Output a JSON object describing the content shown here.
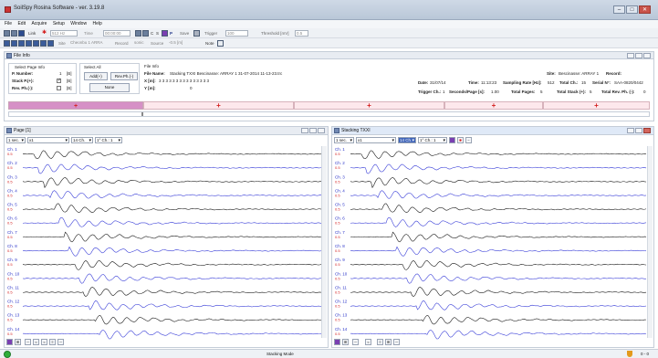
{
  "window": {
    "title": "SoilSpy Rosina Software - ver. 3.19.8"
  },
  "menu": [
    "File",
    "Edit",
    "Acquire",
    "Setup",
    "Window",
    "Help"
  ],
  "toolbar1": {
    "link_label": "Link",
    "sample_rate_value": "512 Hz",
    "time_label": "Time",
    "time_value": "00:00:00",
    "save_label": "Save",
    "trigger_label": "Trigger",
    "trigger_value": "100",
    "threshold_label": "Threshold [mV]",
    "threshold_value": "0.5"
  },
  "toolbar2": {
    "site_label": "Site",
    "site_value": "Cheonbu  1  ARRA",
    "record_label": "Record",
    "record_value": "sonic",
    "source_label": "Source",
    "source_value": "-0.5 [m]",
    "note_label": "Note"
  },
  "file_info_panel": {
    "title": "File Info",
    "select_page_info": "Select Page Info",
    "p_number_label": "P. Number:",
    "p_number_value": "1",
    "stack_p_label": "Stack P.(+):",
    "rev_ph_label": "Rev. Ph.(-):",
    "col_tag": "[B]",
    "select_all": "Select All",
    "add_button": "Add(+)",
    "rev_ph_button": "Rev.Ph.(-)",
    "none_button": "None",
    "file_info_title": "File Info",
    "file_name_label": "File Name:",
    "file_name_value": "Stacking TXXI Bescinasse: ARRAY 1 31-07-2014 11-13-23.trc",
    "x_label": "X [m]:",
    "x_value": "3 3 3 3 3 3 3 3 3 3 3 3 3 3 3",
    "y_label": "Y [m]:",
    "y_value": "0",
    "site_label": "Site:",
    "site_value": "Bescinasse: ARRAY 1",
    "record_label": "Record:",
    "date_label": "Date:",
    "date_value": "31/07/14",
    "time_label": "Time:",
    "time_value": "11:13:23",
    "sampling_label": "Sampling Rate [Hz]:",
    "sampling_value": "512",
    "total_ch_label": "Total Ch.:",
    "total_ch_value": "15",
    "serial_label": "Serial N°:",
    "serial_value": "SAA-0820/0442",
    "trigger_ch_label": "Trigger Ch.:",
    "trigger_ch_value": "1",
    "seconds_label": "Seconds/Page [s]:",
    "seconds_value": "1.00",
    "total_pages_label": "Total Pages:",
    "total_pages_value": "5",
    "total_stack_label": "Total Stack (+):",
    "total_stack_value": "5",
    "total_rev_label": "Total Rev. Ph. (-):",
    "total_rev_value": "0"
  },
  "page_panel": {
    "title": "Page [1]",
    "time_select": "1 sec.",
    "gain_select": "x1",
    "channels_select": "14 Ch.",
    "start_select": "1° Ch.: 1"
  },
  "stack_panel": {
    "title": "Stacking TXXI",
    "time_select": "1 sec.",
    "gain_select": "x1",
    "channels_select": "14 Ch.",
    "start_select": "1° Ch.: 1"
  },
  "channels": [
    {
      "label": "Ch. 1",
      "gain": "0.5"
    },
    {
      "label": "Ch. 2",
      "gain": "0.5"
    },
    {
      "label": "Ch. 3",
      "gain": "0.5"
    },
    {
      "label": "Ch. 4",
      "gain": "0.5"
    },
    {
      "label": "Ch. 5",
      "gain": "0.5"
    },
    {
      "label": "Ch. 6",
      "gain": "0.5"
    },
    {
      "label": "Ch. 7",
      "gain": "0.5"
    },
    {
      "label": "Ch. 8",
      "gain": "0.5"
    },
    {
      "label": "Ch. 9",
      "gain": "0.5"
    },
    {
      "label": "Ch. 10",
      "gain": "0.5"
    },
    {
      "label": "Ch. 11",
      "gain": "0.5"
    },
    {
      "label": "Ch. 12",
      "gain": "0.5"
    },
    {
      "label": "Ch. 13",
      "gain": "0.5"
    },
    {
      "label": "Ch. 14",
      "gain": "0.5"
    }
  ],
  "colors": {
    "trace_dark": "#1a1a1a",
    "trace_blue": "#3a3fd8",
    "label_blue": "#2a33c9",
    "gain_red": "#d42020",
    "selected_page": "#d690c6",
    "other_page": "#fde8ec"
  },
  "status": {
    "mode": "Stacking Mode",
    "counter": "0 - 0"
  }
}
